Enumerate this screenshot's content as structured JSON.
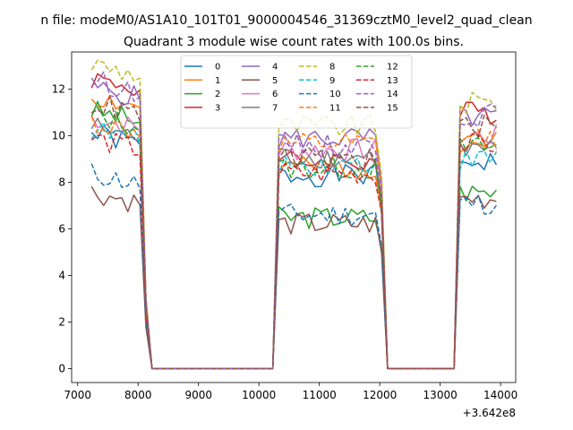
{
  "chart_data": {
    "type": "line",
    "suptitle": "n file: modeM0/AS1A10_101T01_9000004546_31369cztM0_level2_quad_clean",
    "title": "Quadrant 3 module wise count rates with 100.0s bins.",
    "xlabel": "",
    "ylabel": "",
    "x_offset_label": "+3.642e8",
    "xlim": [
      6900,
      14250
    ],
    "ylim": [
      -0.6,
      13.6
    ],
    "x_ticks": [
      7000,
      8000,
      9000,
      10000,
      11000,
      12000,
      13000,
      14000
    ],
    "x_tick_labels": [
      "7000",
      "8000",
      "9000",
      "10000",
      "11000",
      "12000",
      "13000",
      "14000"
    ],
    "y_ticks": [
      0,
      2,
      4,
      6,
      8,
      10,
      12
    ],
    "y_tick_labels": [
      "0",
      "2",
      "4",
      "6",
      "8",
      "10",
      "12"
    ],
    "grid": false,
    "legend_position": "top-center",
    "legend_columns": 4,
    "segments": [
      {
        "start": 7230,
        "end": 8030
      },
      {
        "start": 10330,
        "end": 11930
      },
      {
        "start": 13330,
        "end": 13930
      }
    ],
    "zero_x": [
      8230,
      10230,
      12130,
      13230
    ],
    "series": [
      {
        "name": "0",
        "color": "#1f77b4",
        "dash": "solid",
        "levels": [
          9.6,
          8.3,
          8.9
        ]
      },
      {
        "name": "1",
        "color": "#ff7f0e",
        "dash": "solid",
        "levels": [
          11.2,
          8.6,
          9.7
        ]
      },
      {
        "name": "2",
        "color": "#2ca02c",
        "dash": "solid",
        "levels": [
          10.6,
          6.5,
          7.6
        ]
      },
      {
        "name": "3",
        "color": "#d62728",
        "dash": "solid",
        "levels": [
          12.0,
          8.9,
          11.0
        ]
      },
      {
        "name": "4",
        "color": "#9467bd",
        "dash": "solid",
        "levels": [
          11.6,
          9.9,
          10.8
        ]
      },
      {
        "name": "5",
        "color": "#8c564b",
        "dash": "solid",
        "levels": [
          7.1,
          6.2,
          7.3
        ]
      },
      {
        "name": "6",
        "color": "#e377c2",
        "dash": "solid",
        "levels": [
          10.3,
          9.4,
          10.0
        ]
      },
      {
        "name": "7",
        "color": "#7f7f7f",
        "dash": "solid",
        "levels": [
          9.9,
          9.1,
          9.4
        ]
      },
      {
        "name": "8",
        "color": "#bcbd22",
        "dash": "dashed",
        "levels": [
          12.6,
          10.4,
          11.4
        ]
      },
      {
        "name": "9",
        "color": "#17becf",
        "dash": "dashed",
        "levels": [
          9.8,
          8.8,
          9.0
        ]
      },
      {
        "name": "10",
        "color": "#1f77b4",
        "dash": "dashed",
        "levels": [
          7.9,
          6.6,
          7.1
        ]
      },
      {
        "name": "11",
        "color": "#ff7f0e",
        "dash": "dashed",
        "levels": [
          10.1,
          9.6,
          9.9
        ]
      },
      {
        "name": "12",
        "color": "#2ca02c",
        "dash": "dashed",
        "levels": [
          10.4,
          8.6,
          9.5
        ]
      },
      {
        "name": "13",
        "color": "#d62728",
        "dash": "dashed",
        "levels": [
          9.4,
          8.4,
          9.6
        ]
      },
      {
        "name": "14",
        "color": "#9467bd",
        "dash": "dashed",
        "levels": [
          11.9,
          9.6,
          10.9
        ]
      },
      {
        "name": "15",
        "color": "#8c564b",
        "dash": "dashed",
        "levels": [
          10.9,
          9.0,
          10.4
        ]
      }
    ]
  }
}
